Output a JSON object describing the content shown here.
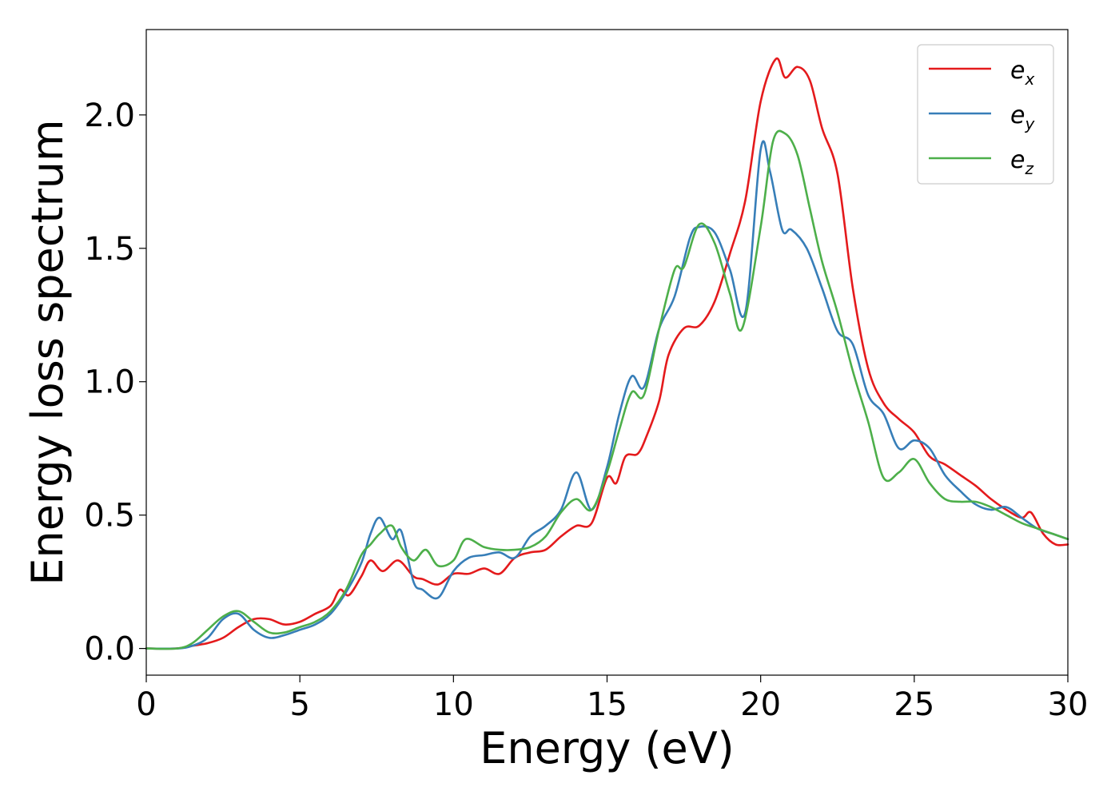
{
  "chart_data": {
    "type": "line",
    "xlabel": "Energy (eV)",
    "ylabel": "Energy loss spectrum",
    "xlim": [
      0,
      30
    ],
    "ylim": [
      -0.1,
      2.32
    ],
    "xticks": [
      0,
      5,
      10,
      15,
      20,
      25,
      30
    ],
    "xtick_labels": [
      "0",
      "5",
      "10",
      "15",
      "20",
      "25",
      "30"
    ],
    "yticks": [
      0.0,
      0.5,
      1.0,
      1.5,
      2.0
    ],
    "ytick_labels": [
      "0.0",
      "0.5",
      "1.0",
      "1.5",
      "2.0"
    ],
    "grid": false,
    "legend_position": "top-right",
    "series": [
      {
        "name": "e",
        "subscript": "x",
        "color": "#e41a1c",
        "x": [
          0,
          1,
          1.5,
          2,
          2.5,
          3,
          3.5,
          4,
          4.5,
          5,
          5.5,
          6,
          6.3,
          6.6,
          7,
          7.3,
          7.7,
          8.2,
          8.7,
          9,
          9.5,
          10,
          10.5,
          11,
          11.5,
          12,
          12.5,
          13,
          13.5,
          14,
          14.5,
          15,
          15.3,
          15.6,
          16,
          16.3,
          16.7,
          17,
          17.5,
          18,
          18.5,
          19,
          19.5,
          20,
          20.5,
          20.8,
          21.2,
          21.6,
          22,
          22.5,
          23,
          23.5,
          24,
          24.5,
          25,
          25.5,
          26,
          26.5,
          27,
          27.5,
          28,
          28.5,
          28.8,
          29.2,
          29.6,
          30
        ],
        "y": [
          0.0,
          0.0,
          0.01,
          0.02,
          0.04,
          0.08,
          0.11,
          0.11,
          0.09,
          0.1,
          0.13,
          0.16,
          0.22,
          0.2,
          0.27,
          0.33,
          0.29,
          0.33,
          0.27,
          0.26,
          0.24,
          0.28,
          0.28,
          0.3,
          0.28,
          0.34,
          0.36,
          0.37,
          0.42,
          0.46,
          0.47,
          0.64,
          0.62,
          0.72,
          0.73,
          0.8,
          0.93,
          1.1,
          1.2,
          1.21,
          1.3,
          1.48,
          1.68,
          2.05,
          2.21,
          2.14,
          2.18,
          2.13,
          1.95,
          1.78,
          1.35,
          1.05,
          0.92,
          0.86,
          0.81,
          0.72,
          0.69,
          0.65,
          0.61,
          0.56,
          0.52,
          0.49,
          0.51,
          0.43,
          0.39,
          0.39
        ]
      },
      {
        "name": "e",
        "subscript": "y",
        "color": "#377eb8",
        "x": [
          0,
          1,
          1.5,
          2,
          2.5,
          3,
          3.5,
          4,
          4.5,
          5,
          5.5,
          6,
          6.5,
          7,
          7.3,
          7.6,
          8,
          8.3,
          8.7,
          9,
          9.5,
          10,
          10.5,
          11,
          11.5,
          12,
          12.5,
          13,
          13.5,
          14,
          14.5,
          15,
          15.4,
          15.8,
          16.2,
          16.7,
          17.2,
          17.7,
          18,
          18.5,
          19,
          19.5,
          20,
          20.3,
          20.7,
          21,
          21.5,
          22,
          22.5,
          23,
          23.5,
          24,
          24.5,
          25,
          25.5,
          26,
          26.5,
          27,
          27.5,
          28,
          28.5,
          29,
          29.5,
          30
        ],
        "y": [
          0.0,
          0.0,
          0.01,
          0.04,
          0.11,
          0.13,
          0.07,
          0.04,
          0.05,
          0.07,
          0.09,
          0.13,
          0.21,
          0.32,
          0.43,
          0.49,
          0.41,
          0.44,
          0.25,
          0.22,
          0.19,
          0.29,
          0.34,
          0.35,
          0.36,
          0.34,
          0.42,
          0.46,
          0.52,
          0.66,
          0.52,
          0.68,
          0.88,
          1.02,
          0.98,
          1.2,
          1.32,
          1.54,
          1.58,
          1.56,
          1.42,
          1.26,
          1.87,
          1.79,
          1.57,
          1.57,
          1.5,
          1.35,
          1.19,
          1.14,
          0.95,
          0.88,
          0.75,
          0.78,
          0.75,
          0.65,
          0.59,
          0.54,
          0.52,
          0.53,
          0.49,
          0.45,
          0.43,
          0.41
        ]
      },
      {
        "name": "e",
        "subscript": "z",
        "color": "#4daf4a",
        "x": [
          0,
          1,
          1.5,
          2,
          2.5,
          3,
          3.5,
          4,
          4.5,
          5,
          5.5,
          6,
          6.5,
          7,
          7.3,
          7.6,
          8,
          8.3,
          8.7,
          9.1,
          9.5,
          10,
          10.4,
          11,
          11.5,
          12,
          12.5,
          13,
          13.5,
          14,
          14.5,
          15,
          15.4,
          15.8,
          16.2,
          16.7,
          17.2,
          17.5,
          18,
          18.5,
          19,
          19.4,
          20,
          20.4,
          20.8,
          21.2,
          21.6,
          22,
          22.5,
          23,
          23.5,
          24,
          24.5,
          25,
          25.5,
          26,
          26.5,
          27,
          27.5,
          28,
          28.5,
          29,
          29.5,
          30
        ],
        "y": [
          0.0,
          0.0,
          0.02,
          0.07,
          0.12,
          0.14,
          0.1,
          0.06,
          0.06,
          0.08,
          0.1,
          0.14,
          0.22,
          0.35,
          0.39,
          0.43,
          0.46,
          0.38,
          0.33,
          0.37,
          0.31,
          0.33,
          0.41,
          0.38,
          0.37,
          0.37,
          0.38,
          0.42,
          0.51,
          0.56,
          0.52,
          0.66,
          0.82,
          0.96,
          0.95,
          1.2,
          1.42,
          1.43,
          1.59,
          1.52,
          1.33,
          1.2,
          1.58,
          1.9,
          1.93,
          1.85,
          1.65,
          1.45,
          1.26,
          1.04,
          0.85,
          0.64,
          0.66,
          0.71,
          0.62,
          0.56,
          0.55,
          0.55,
          0.53,
          0.5,
          0.47,
          0.45,
          0.43,
          0.41
        ]
      }
    ]
  }
}
